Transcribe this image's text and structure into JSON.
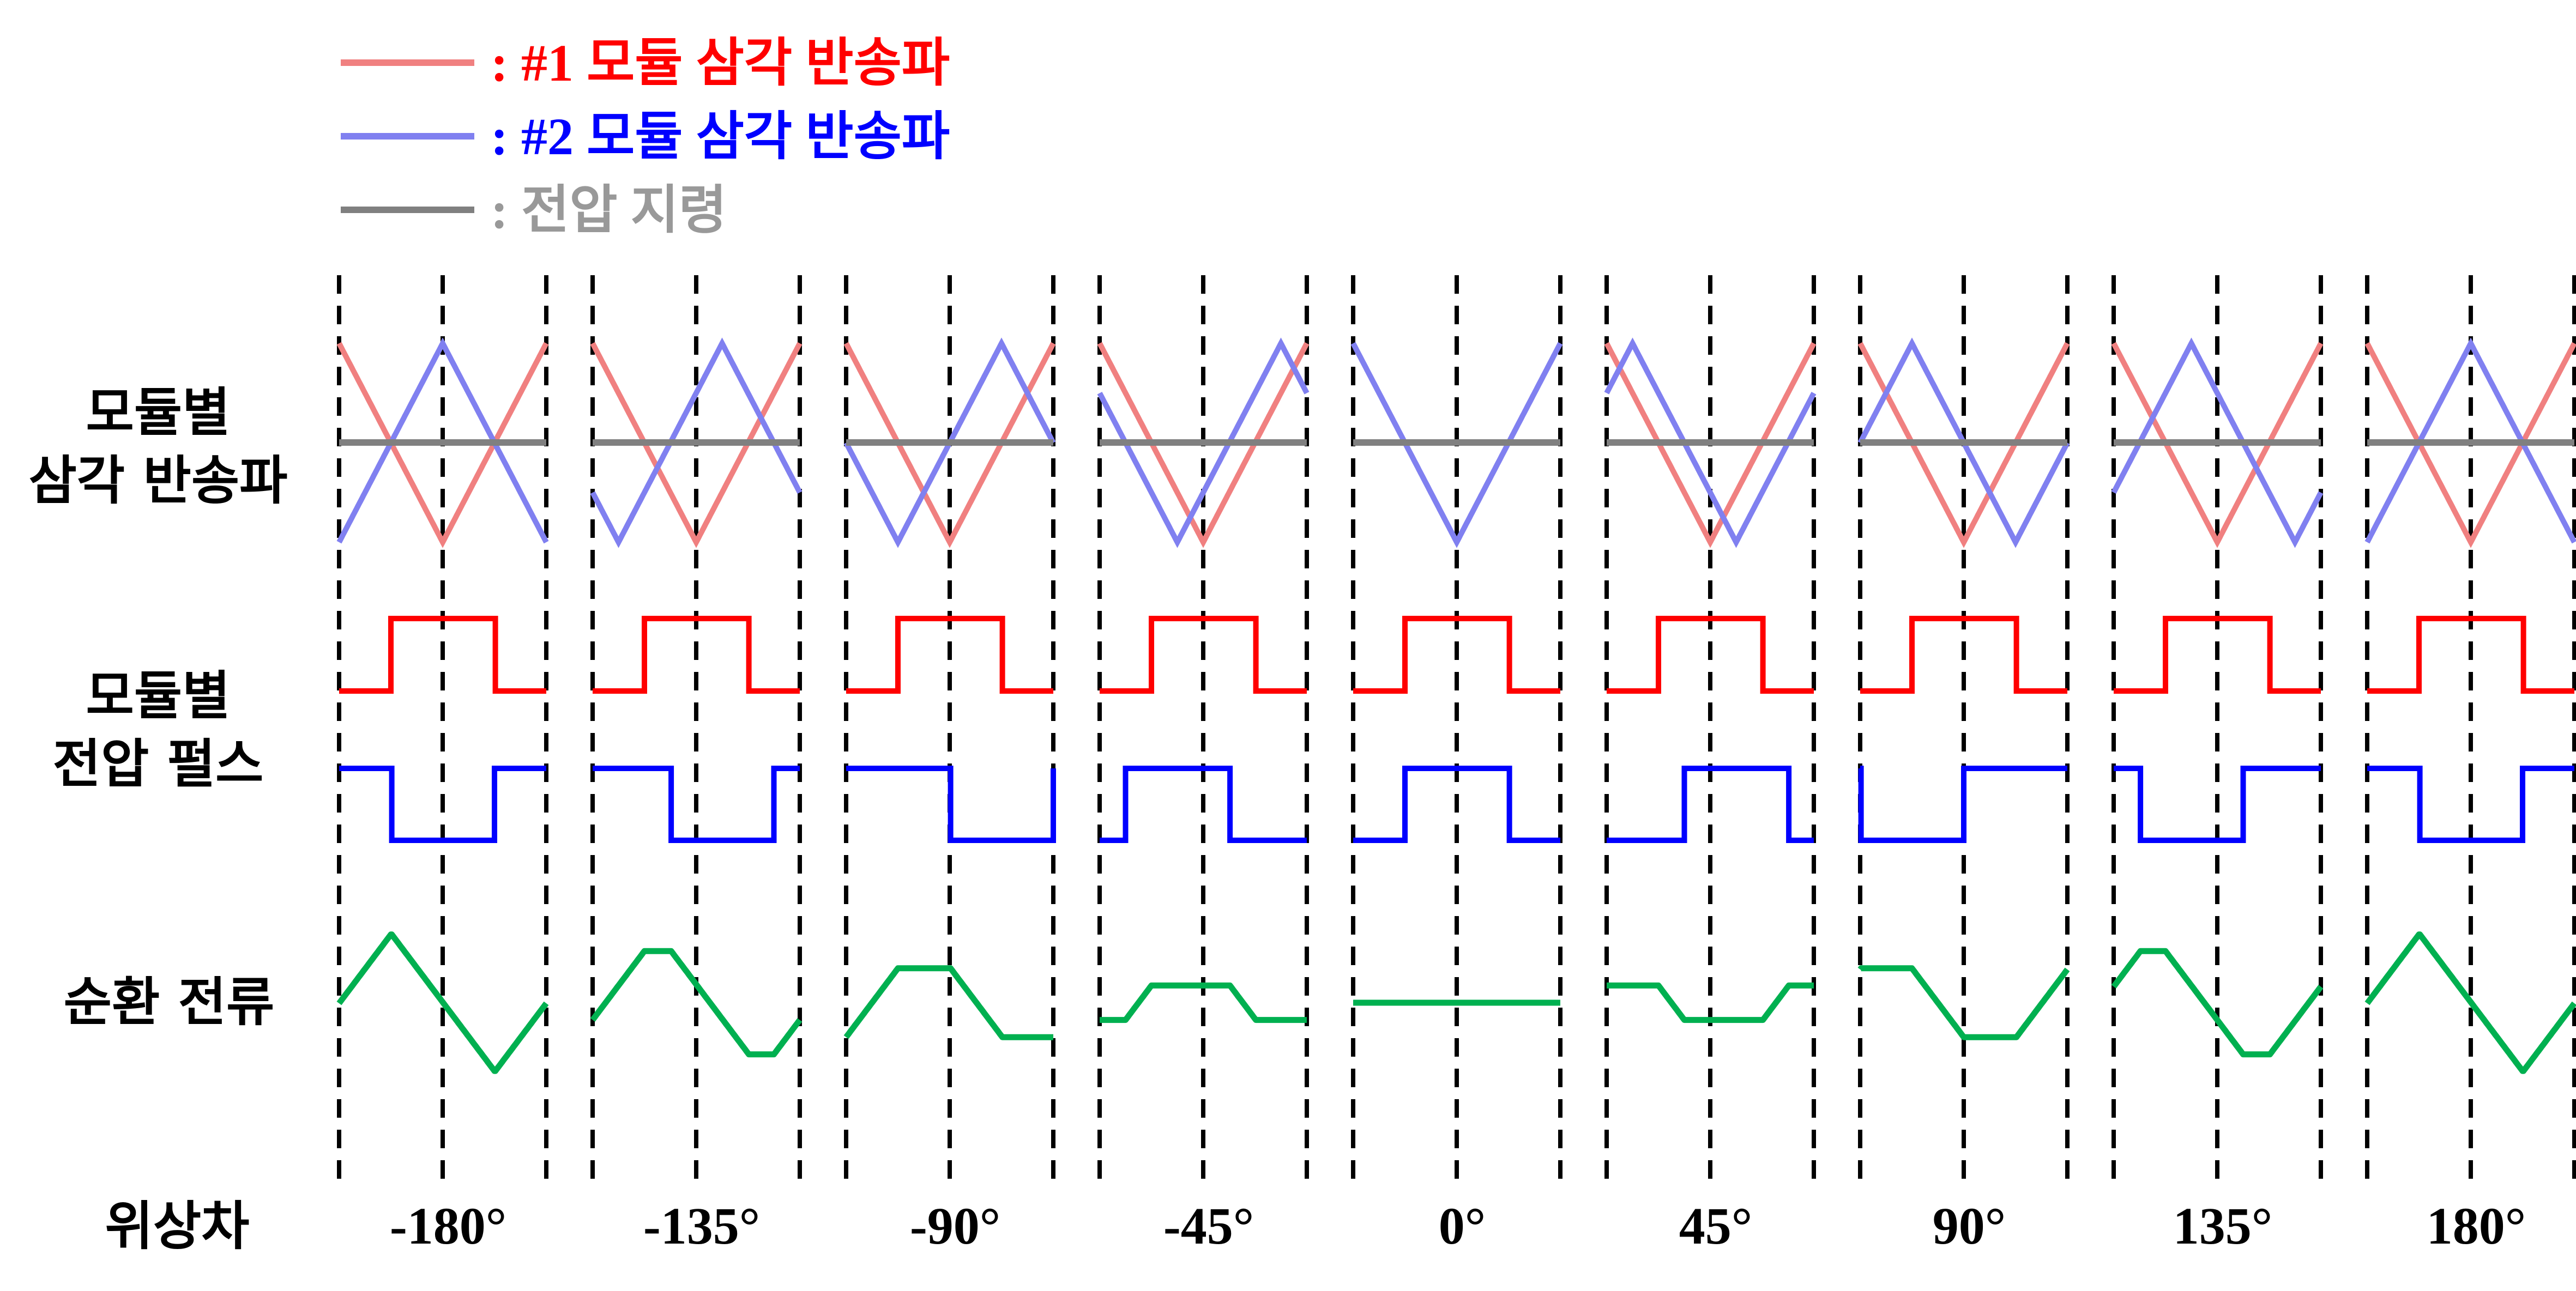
{
  "legend": [
    {
      "label": ": #1 모듈 삼각 반송파",
      "color": "#ff0000",
      "line_color": "#f08080"
    },
    {
      "label": ": #2 모듈 삼각 반송파",
      "color": "#0000ff",
      "line_color": "#8080f0"
    },
    {
      "label": ": 전압 지령",
      "color": "#999999",
      "line_color": "#808080"
    }
  ],
  "row_labels": {
    "carrier": [
      "모듈별",
      "삼각 반송파"
    ],
    "pulse": [
      "모듈별",
      "전압 펄스"
    ],
    "current": "순환 전류",
    "phase": "위상차"
  },
  "phases": [
    "-180°",
    "-135°",
    "-90°",
    "-45°",
    "0°",
    "45°",
    "90°",
    "135°",
    "180°"
  ],
  "phase_values_deg": [
    -180,
    -135,
    -90,
    -45,
    0,
    45,
    90,
    135,
    180
  ],
  "colors": {
    "carrier1": "#f08080",
    "carrier2": "#8080f0",
    "reference": "#808080",
    "pulse1": "#ff0000",
    "pulse2": "#0000ff",
    "current": "#00b050",
    "divider": "#000000"
  }
}
